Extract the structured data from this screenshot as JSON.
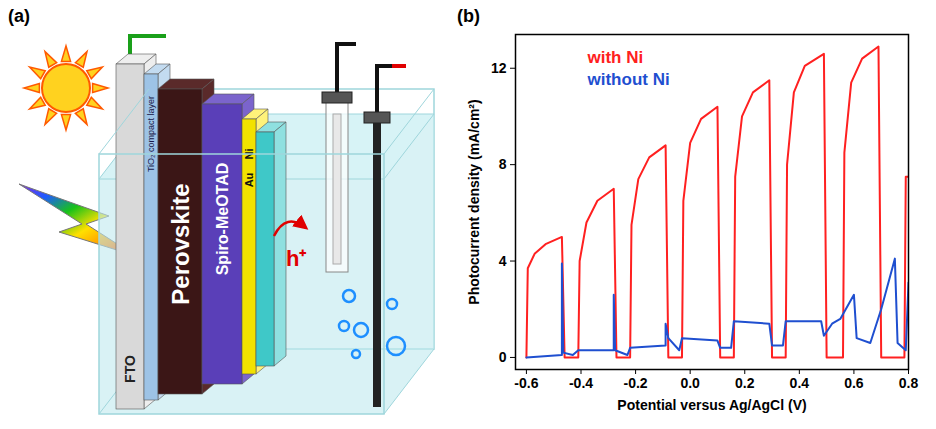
{
  "diagram": {
    "panel_label": "(a)",
    "layers": {
      "fto": "FTO",
      "tio2": "TiO₂ compact layer",
      "perovskite": "Perovskite",
      "spiro": "Spiro-MeOTAD",
      "ni": "Ni",
      "au": "Au"
    },
    "charge": "h⁺"
  },
  "chart_data": {
    "type": "line",
    "panel_label": "(b)",
    "x_label": "Potential versus Ag/AgCl (V)",
    "y_label": "Photocurrent density (mA/cm²)",
    "xlim": [
      -0.64,
      0.8
    ],
    "xticks": [
      -0.6,
      -0.4,
      -0.2,
      {
        "value": 0,
        "label": "0.0"
      },
      0.2,
      0.4,
      0.6,
      0.8
    ],
    "ylim": [
      -0.5,
      13.4
    ],
    "yticks": [
      0,
      4,
      8,
      12
    ],
    "legend": "top-left",
    "grid": false,
    "series": [
      {
        "name": "with Ni",
        "color": "#ff2020",
        "x": [
          -0.6,
          -0.595,
          -0.57,
          -0.53,
          -0.47,
          -0.46,
          -0.41,
          -0.405,
          -0.38,
          -0.34,
          -0.28,
          -0.27,
          -0.22,
          -0.215,
          -0.19,
          -0.15,
          -0.09,
          -0.08,
          -0.03,
          -0.025,
          0,
          0.04,
          0.1,
          0.11,
          0.16,
          0.165,
          0.19,
          0.23,
          0.29,
          0.3,
          0.35,
          0.355,
          0.38,
          0.42,
          0.49,
          0.5,
          0.56,
          0.565,
          0.59,
          0.63,
          0.69,
          0.7,
          0.785,
          0.79,
          0.8
        ],
        "values": [
          0,
          3.7,
          4.3,
          4.7,
          5.0,
          0,
          0,
          4.0,
          5.6,
          6.5,
          7.0,
          0,
          0,
          5.5,
          7.4,
          8.3,
          8.8,
          0,
          0,
          6.5,
          8.9,
          9.9,
          10.4,
          0,
          0,
          7.5,
          10.0,
          11.0,
          11.5,
          0,
          0,
          8.0,
          11.0,
          12.1,
          12.6,
          0,
          0,
          8.5,
          11.4,
          12.4,
          12.9,
          0,
          0,
          7.5,
          7.5
        ]
      },
      {
        "name": "without Ni",
        "color": "#1f4fd0",
        "x": [
          -0.6,
          -0.47,
          -0.47,
          -0.465,
          -0.43,
          -0.41,
          -0.28,
          -0.28,
          -0.275,
          -0.23,
          -0.22,
          -0.09,
          -0.09,
          -0.08,
          -0.04,
          -0.03,
          0.1,
          0.11,
          0.15,
          0.16,
          0.29,
          0.3,
          0.34,
          0.35,
          0.48,
          0.49,
          0.52,
          0.55,
          0.6,
          0.61,
          0.66,
          0.7,
          0.75,
          0.76,
          0.79,
          0.8
        ],
        "values": [
          0,
          0.1,
          3.9,
          0.2,
          0.1,
          0.3,
          0.3,
          2.6,
          0.3,
          0.1,
          0.4,
          0.5,
          1.4,
          0.8,
          0.3,
          0.8,
          0.7,
          0.4,
          0.4,
          1.5,
          1.4,
          0.5,
          0.5,
          1.5,
          1.5,
          0.9,
          1.4,
          1.6,
          2.6,
          0.8,
          0.6,
          2.0,
          4.1,
          0.6,
          0.3,
          3.1
        ]
      }
    ]
  }
}
